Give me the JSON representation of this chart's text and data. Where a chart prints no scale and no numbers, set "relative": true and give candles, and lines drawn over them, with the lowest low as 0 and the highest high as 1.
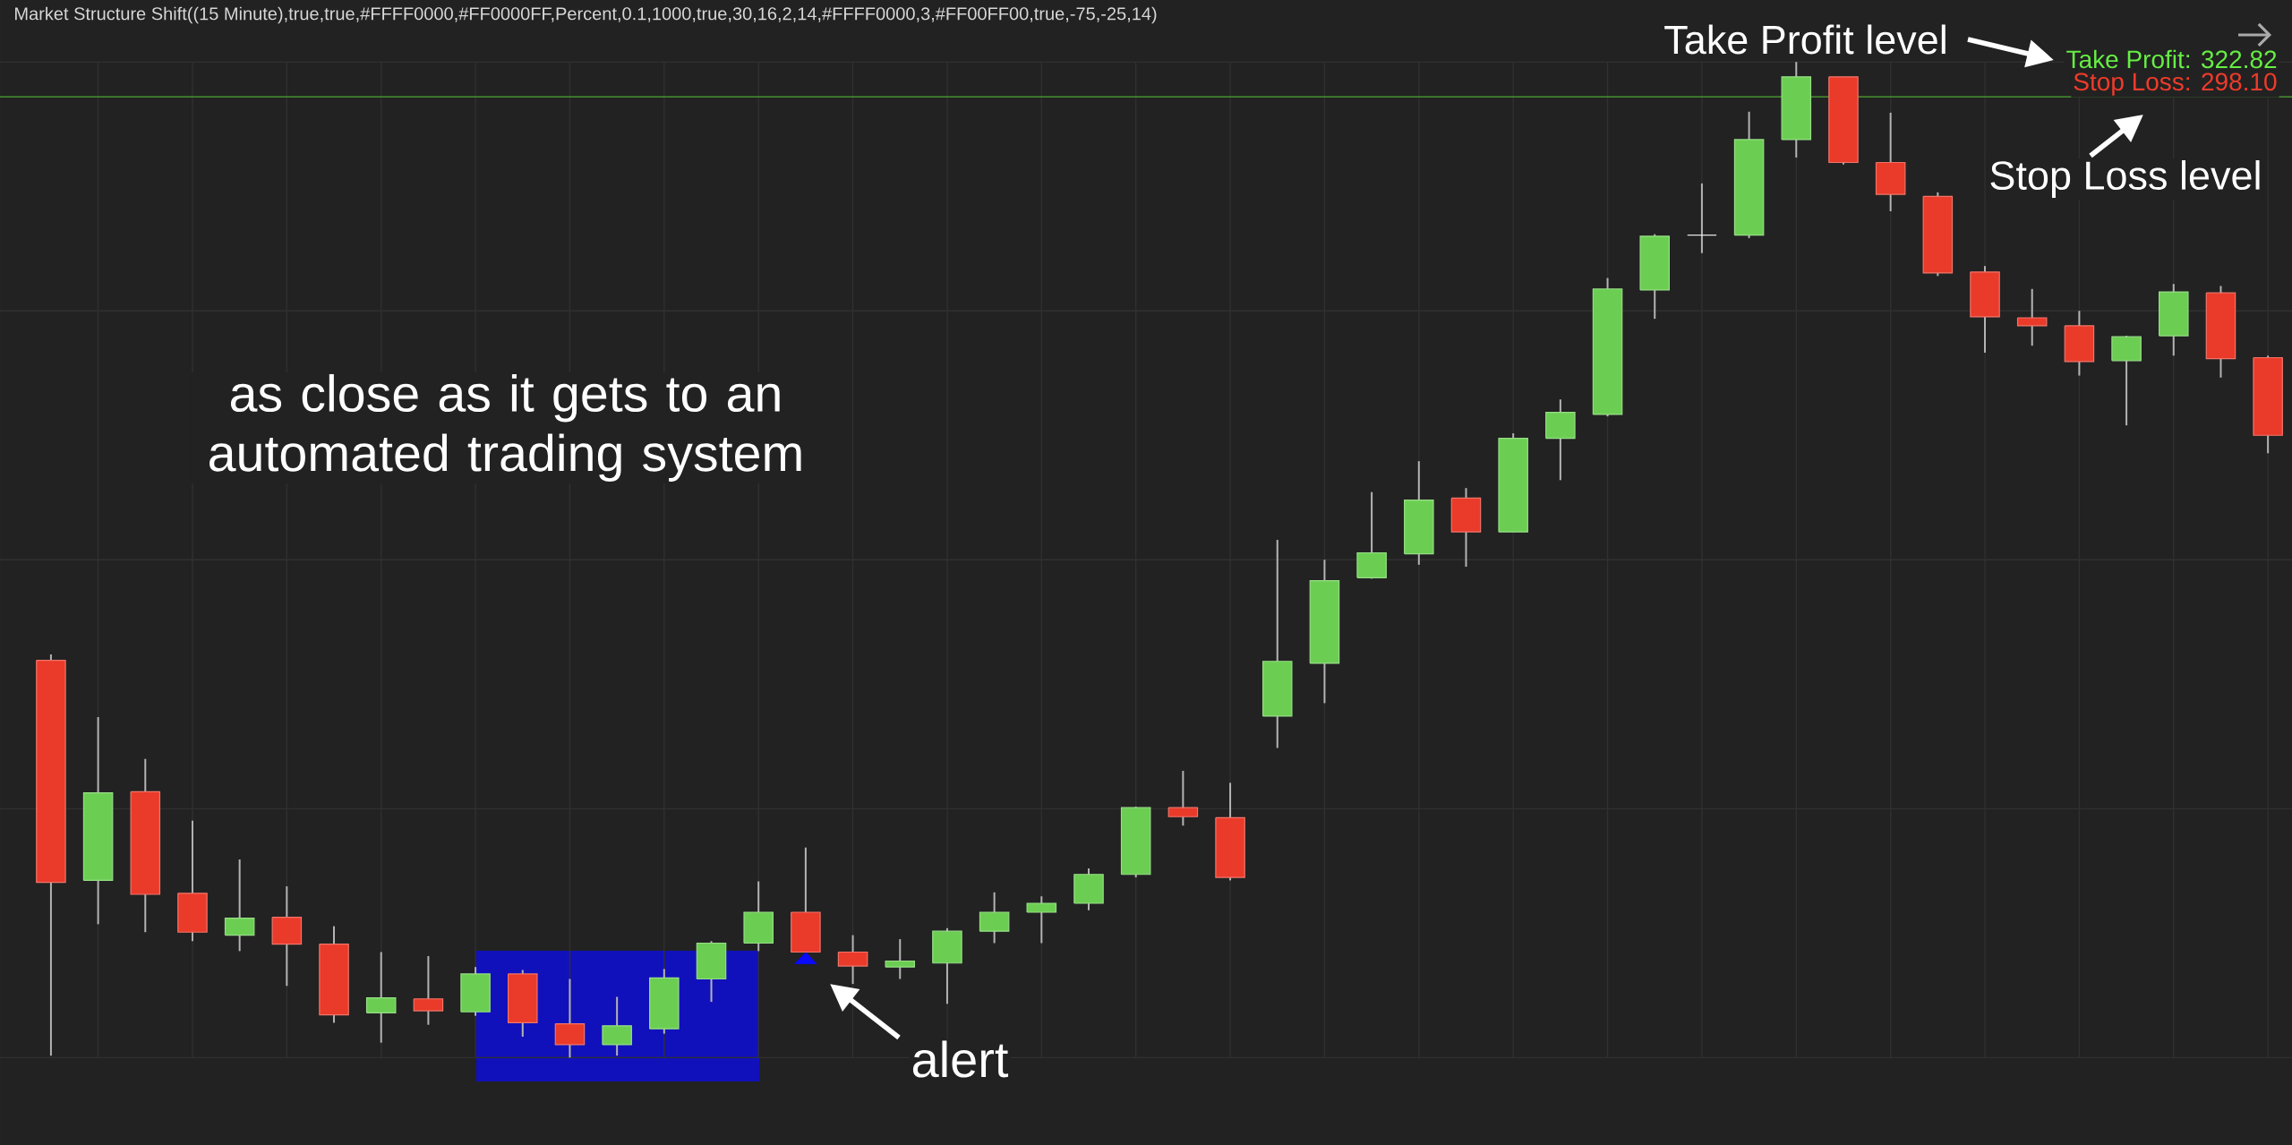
{
  "chart_data": {
    "type": "candlestick",
    "title": "Market Structure Shift((15 Minute),true,true,#FFFF0000,#FF0000FF,Percent,0.1,1000,true,30,16,2,14,#FFFF0000,3,#FF00FF00,true,-75,-25,14)",
    "relative": true,
    "grid": true,
    "tick_labels": false,
    "categories": [
      null,
      null,
      null,
      null,
      null,
      null,
      null,
      null,
      null,
      null,
      null,
      null,
      null,
      null,
      null,
      null,
      null,
      null,
      null,
      null,
      null,
      null,
      null,
      null,
      null,
      null,
      null,
      null,
      null,
      null,
      null,
      null,
      null,
      null,
      null,
      null,
      null,
      null,
      null,
      null,
      null,
      null,
      null,
      null,
      null,
      null,
      null,
      null
    ],
    "ohlc": [
      [
        0.399,
        0.405,
        0.002,
        0.176
      ],
      [
        0.178,
        0.342,
        0.134,
        0.266
      ],
      [
        0.267,
        0.3,
        0.126,
        0.164
      ],
      [
        0.165,
        0.238,
        0.117,
        0.126
      ],
      [
        0.123,
        0.199,
        0.107,
        0.14
      ],
      [
        0.141,
        0.172,
        0.072,
        0.114
      ],
      [
        0.114,
        0.132,
        0.035,
        0.043
      ],
      [
        0.045,
        0.106,
        0.015,
        0.06
      ],
      [
        0.059,
        0.102,
        0.033,
        0.047
      ],
      [
        0.046,
        0.091,
        0.042,
        0.084
      ],
      [
        0.084,
        0.088,
        0.021,
        0.035
      ],
      [
        0.034,
        0.079,
        0,
        0.013
      ],
      [
        0.013,
        0.061,
        0.002,
        0.032
      ],
      [
        0.029,
        0.089,
        0.024,
        0.08
      ],
      [
        0.079,
        0.117,
        0.056,
        0.115
      ],
      [
        0.115,
        0.177,
        0.107,
        0.146
      ],
      [
        0.146,
        0.211,
        0.106,
        0.106
      ],
      [
        0.106,
        0.123,
        0.074,
        0.092
      ],
      [
        0.091,
        0.119,
        0.079,
        0.097
      ],
      [
        0.095,
        0.13,
        0.054,
        0.127
      ],
      [
        0.127,
        0.166,
        0.115,
        0.146
      ],
      [
        0.146,
        0.162,
        0.115,
        0.155
      ],
      [
        0.155,
        0.19,
        0.148,
        0.184
      ],
      [
        0.184,
        0.252,
        0.181,
        0.251
      ],
      [
        0.251,
        0.288,
        0.233,
        0.242
      ],
      [
        0.241,
        0.276,
        0.178,
        0.181
      ],
      [
        0.343,
        0.52,
        0.311,
        0.398
      ],
      [
        0.396,
        0.5,
        0.356,
        0.479
      ],
      [
        0.482,
        0.568,
        0.481,
        0.507
      ],
      [
        0.506,
        0.599,
        0.495,
        0.56
      ],
      [
        0.562,
        0.572,
        0.493,
        0.528
      ],
      [
        0.528,
        0.627,
        0.528,
        0.622
      ],
      [
        0.622,
        0.661,
        0.58,
        0.648
      ],
      [
        0.646,
        0.783,
        0.644,
        0.772
      ],
      [
        0.771,
        0.827,
        0.742,
        0.825
      ],
      [
        0.826,
        0.878,
        0.808,
        0.826
      ],
      [
        0.826,
        0.95,
        0.823,
        0.922
      ],
      [
        0.922,
        1,
        0.904,
        0.985
      ],
      [
        0.985,
        0.985,
        0.897,
        0.899
      ],
      [
        0.899,
        0.949,
        0.85,
        0.867
      ],
      [
        0.865,
        0.869,
        0.785,
        0.788
      ],
      [
        0.789,
        0.795,
        0.708,
        0.744
      ],
      [
        0.743,
        0.772,
        0.715,
        0.735
      ],
      [
        0.735,
        0.75,
        0.685,
        0.699
      ],
      [
        0.7,
        0.725,
        0.635,
        0.724
      ],
      [
        0.725,
        0.777,
        0.705,
        0.769
      ],
      [
        0.768,
        0.775,
        0.683,
        0.702
      ],
      [
        0.703,
        0.705,
        0.607,
        0.625
      ]
    ],
    "colors": [
      "#ea3a2a",
      "#6bce52",
      "#ea3a2a",
      "#ea3a2a",
      "#6bce52",
      "#ea3a2a",
      "#ea3a2a",
      "#6bce52",
      "#ea3a2a",
      "#6bce52",
      "#ea3a2a",
      "#ea3a2a",
      "#6bce52",
      "#6bce52",
      "#6bce52",
      "#6bce52",
      "#ea3a2a",
      "#ea3a2a",
      "#6bce52",
      "#6bce52",
      "#6bce52",
      "#6bce52",
      "#6bce52",
      "#6bce52",
      "#ea3a2a",
      "#ea3a2a",
      "#6bce52",
      "#6bce52",
      "#6bce52",
      "#6bce52",
      "#ea3a2a",
      "#6bce52",
      "#6bce52",
      "#6bce52",
      "#6bce52",
      "#d9d9d9",
      "#6bce52",
      "#6bce52",
      "#ea3a2a",
      "#ea3a2a",
      "#ea3a2a",
      "#ea3a2a",
      "#ea3a2a",
      "#ea3a2a",
      "#6bce52",
      "#6bce52",
      "#ea3a2a",
      "#ea3a2a"
    ],
    "series": [
      {
        "type": "scatter",
        "marker": "triangle",
        "color": "#0a0aff",
        "values": [
          null,
          null,
          null,
          null,
          null,
          null,
          null,
          null,
          null,
          null,
          null,
          null,
          null,
          null,
          null,
          null,
          0.098,
          null,
          null,
          null,
          null,
          null,
          null,
          null,
          null,
          null,
          null,
          null,
          null,
          null,
          null,
          null,
          null,
          null,
          null,
          null,
          null,
          null,
          null,
          null,
          null,
          null,
          null,
          null,
          null,
          null,
          null,
          null
        ]
      }
    ],
    "ref_lines": [
      {
        "axis": "y",
        "value": 0.965,
        "color": "#4fa832"
      }
    ],
    "annotations": [
      "as close as it gets to an automated trading system",
      "alert",
      "Take Profit level",
      "Stop Loss level",
      "Take Profit: 322.82",
      "Stop Loss: 298.10"
    ]
  }
}
